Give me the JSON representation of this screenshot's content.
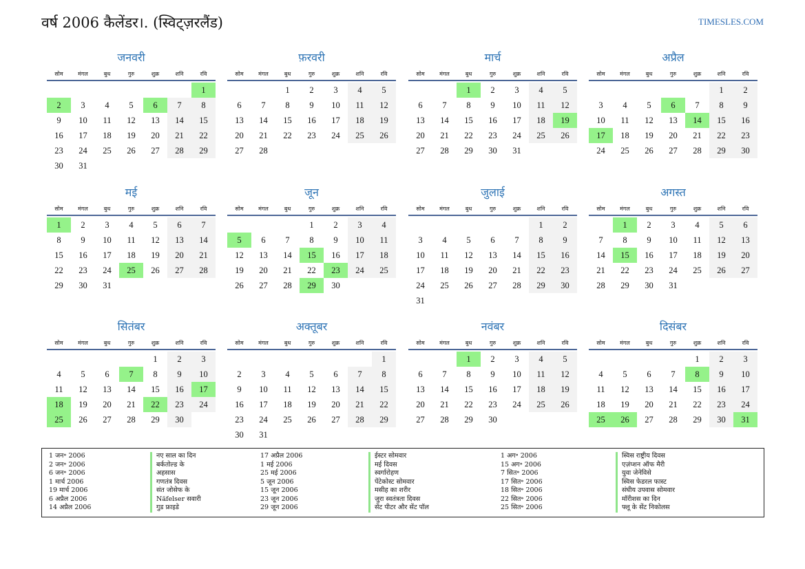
{
  "title": "वर्ष 2006 कैलेंडर।. (स्विट्ज़रलैंड)",
  "site": "TIMESLES.COM",
  "year": 2006,
  "weekdays": [
    "सोम",
    "मंगल",
    "बुध",
    "गुरु",
    "शुक्र",
    "शनि",
    "रवि"
  ],
  "colors": {
    "holiday": "#95f28a",
    "weekend": "#f2f2f2",
    "month": "#2e74b5"
  },
  "months": [
    {
      "name": "जनवरी",
      "holidays": [
        1,
        2,
        6
      ]
    },
    {
      "name": "फ़रवरी",
      "holidays": []
    },
    {
      "name": "मार्च",
      "holidays": [
        1,
        19
      ]
    },
    {
      "name": "अप्रैल",
      "holidays": [
        6,
        14,
        17
      ]
    },
    {
      "name": "मई",
      "holidays": [
        1,
        25
      ]
    },
    {
      "name": "जून",
      "holidays": [
        5,
        15,
        23,
        29
      ]
    },
    {
      "name": "जुलाई",
      "holidays": []
    },
    {
      "name": "अगस्त",
      "holidays": [
        1,
        15
      ]
    },
    {
      "name": "सितंबर",
      "holidays": [
        7,
        17,
        18,
        22,
        25
      ]
    },
    {
      "name": "अक्तूबर",
      "holidays": []
    },
    {
      "name": "नवंबर",
      "holidays": [
        1
      ]
    },
    {
      "name": "दिसंबर",
      "holidays": [
        8,
        25,
        26,
        31
      ]
    }
  ],
  "holiday_list": [
    {
      "date": "1 जन॰ 2006",
      "name": "नए साल का दिन"
    },
    {
      "date": "2 जन॰ 2006",
      "name": "बर्कतोल्ड के"
    },
    {
      "date": "6 जन॰ 2006",
      "name": "अहसास"
    },
    {
      "date": "1 मार्च 2006",
      "name": "गणतंत्र दिवस"
    },
    {
      "date": "19 मार्च 2006",
      "name": "संत जोसेफ के"
    },
    {
      "date": "6 अप्रैल 2006",
      "name": "Näfelser सवारी"
    },
    {
      "date": "14 अप्रैल 2006",
      "name": "गुड फ्राइडे"
    },
    {
      "date": "17 अप्रैल 2006",
      "name": "ईस्टर सोमवार"
    },
    {
      "date": "1 मई 2006",
      "name": "मई दिवस"
    },
    {
      "date": "25 मई 2006",
      "name": "स्वर्गारोहण"
    },
    {
      "date": "5 जून 2006",
      "name": "पेंटेकोस्ट सोमवार"
    },
    {
      "date": "15 जून 2006",
      "name": "मसीह का शरीर"
    },
    {
      "date": "23 जून 2006",
      "name": "जुरा स्वतंत्रता दिवस"
    },
    {
      "date": "29 जून 2006",
      "name": "सेंट पीटर और सेंट पॉल"
    },
    {
      "date": "1 अग॰ 2006",
      "name": "स्विस राष्ट्रीय दिवस"
    },
    {
      "date": "15 अग॰ 2006",
      "name": "एज़ंप्शन ऑफ मैरी"
    },
    {
      "date": "7 सित॰ 2006",
      "name": "युवा जेनेविसे"
    },
    {
      "date": "17 सित॰ 2006",
      "name": "स्विस फेडरल फास्ट"
    },
    {
      "date": "18 सित॰ 2006",
      "name": "संघीय उपवास सोमवार"
    },
    {
      "date": "22 सित॰ 2006",
      "name": "मॉरीशस का दिन"
    },
    {
      "date": "25 सित॰ 2006",
      "name": "फ्लू के सेंट निकोलस"
    }
  ]
}
